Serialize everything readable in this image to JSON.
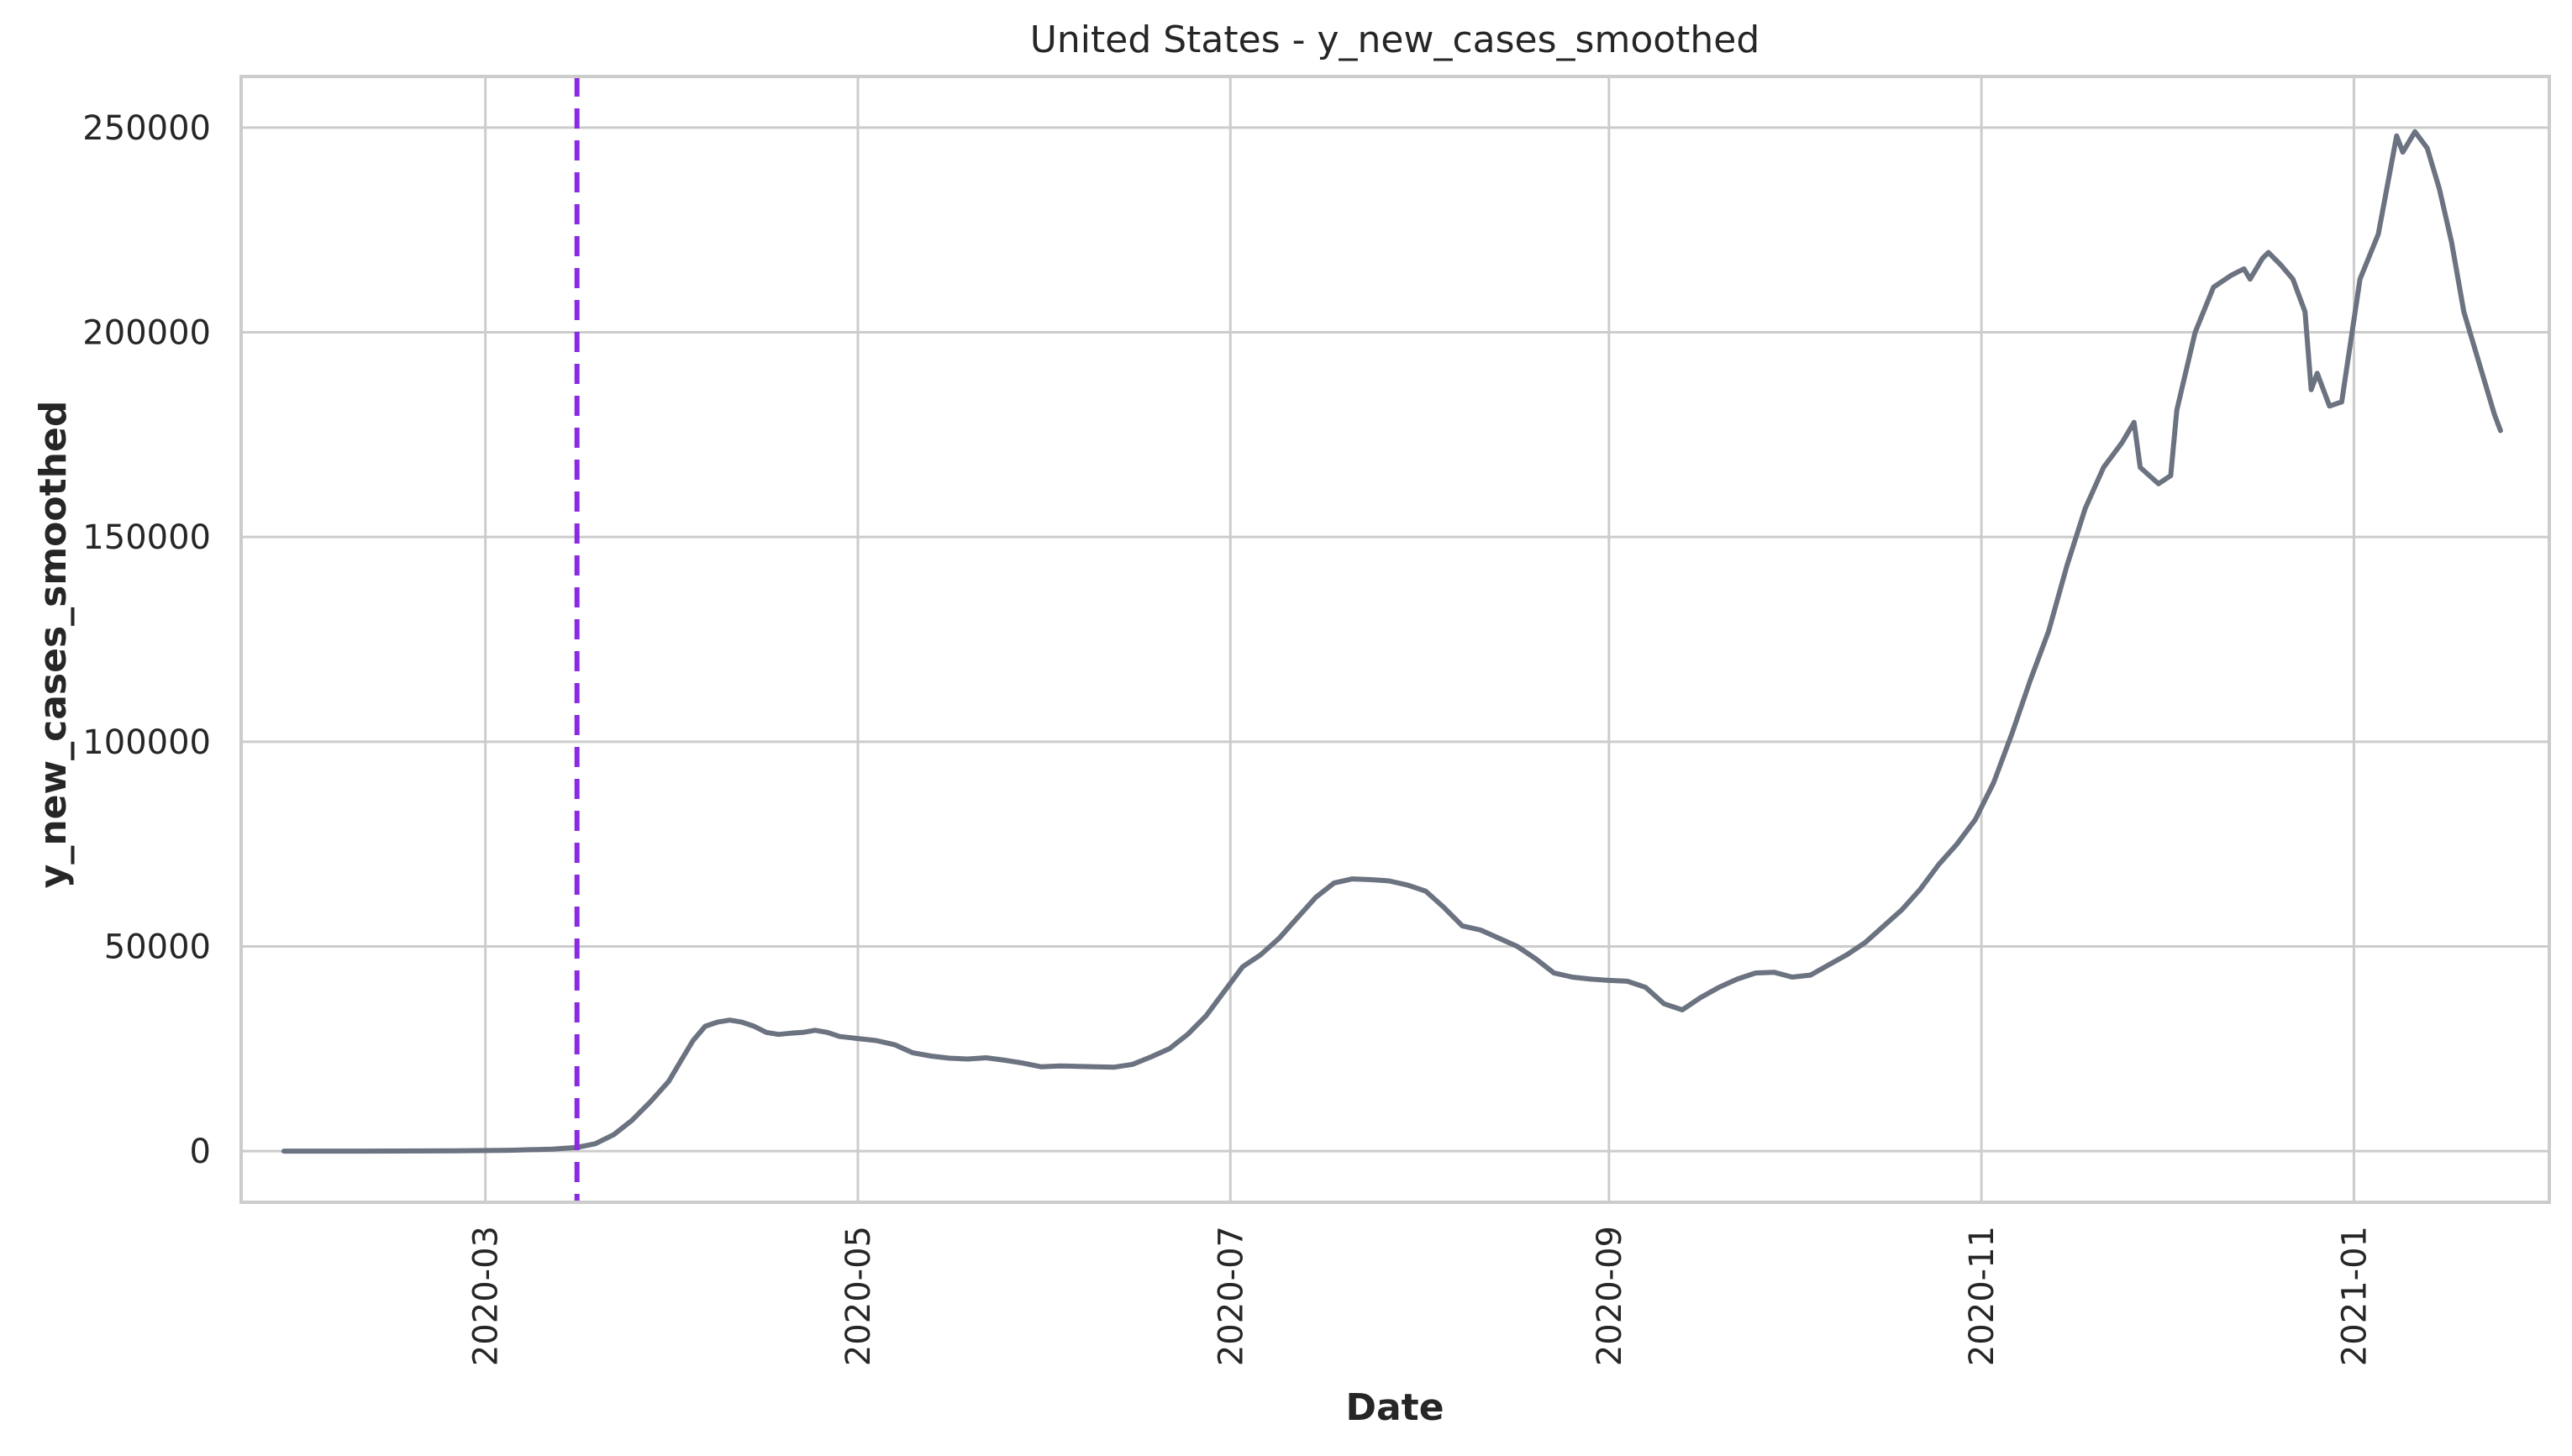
{
  "chart_data": {
    "type": "line",
    "title": "United States - y_new_cases_smoothed",
    "xlabel": "Date",
    "ylabel": "y_new_cases_smoothed",
    "x_range": [
      "2020-01-21",
      "2021-02-02"
    ],
    "ylim": [
      -12500,
      262500
    ],
    "x_ticks": [
      "2020-03",
      "2020-05",
      "2020-07",
      "2020-09",
      "2020-11",
      "2021-01"
    ],
    "y_ticks": [
      0,
      50000,
      100000,
      150000,
      200000,
      250000
    ],
    "grid": true,
    "vertical_marker": {
      "date": "2020-03-16",
      "color": "#8a2be2",
      "style": "dashed"
    },
    "series": [
      {
        "color": "#6b7280",
        "points": [
          [
            "2020-01-28",
            0
          ],
          [
            "2020-02-10",
            0
          ],
          [
            "2020-02-25",
            50
          ],
          [
            "2020-03-05",
            200
          ],
          [
            "2020-03-12",
            500
          ],
          [
            "2020-03-16",
            900
          ],
          [
            "2020-03-19",
            1800
          ],
          [
            "2020-03-22",
            4000
          ],
          [
            "2020-03-25",
            7500
          ],
          [
            "2020-03-28",
            12000
          ],
          [
            "2020-03-31",
            17000
          ],
          [
            "2020-04-02",
            22000
          ],
          [
            "2020-04-04",
            27000
          ],
          [
            "2020-04-06",
            30500
          ],
          [
            "2020-04-08",
            31500
          ],
          [
            "2020-04-10",
            32000
          ],
          [
            "2020-04-12",
            31500
          ],
          [
            "2020-04-14",
            30500
          ],
          [
            "2020-04-16",
            29000
          ],
          [
            "2020-04-18",
            28500
          ],
          [
            "2020-04-20",
            28800
          ],
          [
            "2020-04-22",
            29000
          ],
          [
            "2020-04-24",
            29500
          ],
          [
            "2020-04-26",
            29000
          ],
          [
            "2020-04-28",
            28000
          ],
          [
            "2020-05-01",
            27500
          ],
          [
            "2020-05-04",
            27000
          ],
          [
            "2020-05-07",
            26000
          ],
          [
            "2020-05-10",
            24000
          ],
          [
            "2020-05-13",
            23200
          ],
          [
            "2020-05-16",
            22700
          ],
          [
            "2020-05-19",
            22500
          ],
          [
            "2020-05-22",
            22800
          ],
          [
            "2020-05-25",
            22200
          ],
          [
            "2020-05-28",
            21500
          ],
          [
            "2020-05-31",
            20600
          ],
          [
            "2020-06-03",
            20800
          ],
          [
            "2020-06-06",
            20700
          ],
          [
            "2020-06-09",
            20600
          ],
          [
            "2020-06-12",
            20500
          ],
          [
            "2020-06-15",
            21200
          ],
          [
            "2020-06-18",
            23000
          ],
          [
            "2020-06-21",
            25000
          ],
          [
            "2020-06-24",
            28500
          ],
          [
            "2020-06-27",
            33000
          ],
          [
            "2020-06-30",
            39000
          ],
          [
            "2020-07-03",
            45000
          ],
          [
            "2020-07-06",
            48000
          ],
          [
            "2020-07-09",
            52000
          ],
          [
            "2020-07-12",
            57000
          ],
          [
            "2020-07-15",
            62000
          ],
          [
            "2020-07-18",
            65500
          ],
          [
            "2020-07-21",
            66500
          ],
          [
            "2020-07-24",
            66300
          ],
          [
            "2020-07-27",
            66000
          ],
          [
            "2020-07-30",
            65000
          ],
          [
            "2020-08-02",
            63500
          ],
          [
            "2020-08-05",
            59500
          ],
          [
            "2020-08-08",
            55000
          ],
          [
            "2020-08-11",
            54000
          ],
          [
            "2020-08-14",
            52000
          ],
          [
            "2020-08-17",
            50000
          ],
          [
            "2020-08-20",
            47000
          ],
          [
            "2020-08-23",
            43500
          ],
          [
            "2020-08-26",
            42500
          ],
          [
            "2020-08-29",
            42000
          ],
          [
            "2020-09-01",
            41700
          ],
          [
            "2020-09-04",
            41500
          ],
          [
            "2020-09-07",
            40000
          ],
          [
            "2020-09-10",
            36000
          ],
          [
            "2020-09-13",
            34500
          ],
          [
            "2020-09-16",
            37500
          ],
          [
            "2020-09-19",
            40000
          ],
          [
            "2020-09-22",
            42000
          ],
          [
            "2020-09-25",
            43500
          ],
          [
            "2020-09-28",
            43700
          ],
          [
            "2020-10-01",
            42500
          ],
          [
            "2020-10-04",
            43000
          ],
          [
            "2020-10-07",
            45500
          ],
          [
            "2020-10-10",
            48000
          ],
          [
            "2020-10-13",
            51000
          ],
          [
            "2020-10-16",
            55000
          ],
          [
            "2020-10-19",
            59000
          ],
          [
            "2020-10-22",
            64000
          ],
          [
            "2020-10-25",
            70000
          ],
          [
            "2020-10-28",
            75000
          ],
          [
            "2020-10-31",
            81000
          ],
          [
            "2020-11-03",
            90000
          ],
          [
            "2020-11-06",
            102000
          ],
          [
            "2020-11-09",
            115000
          ],
          [
            "2020-11-12",
            127000
          ],
          [
            "2020-11-15",
            143000
          ],
          [
            "2020-11-18",
            157000
          ],
          [
            "2020-11-21",
            167000
          ],
          [
            "2020-11-24",
            173000
          ],
          [
            "2020-11-26",
            178000
          ],
          [
            "2020-11-27",
            167000
          ],
          [
            "2020-11-30",
            163000
          ],
          [
            "2020-12-02",
            165000
          ],
          [
            "2020-12-03",
            181000
          ],
          [
            "2020-12-06",
            200000
          ],
          [
            "2020-12-09",
            211000
          ],
          [
            "2020-12-12",
            214000
          ],
          [
            "2020-12-14",
            215500
          ],
          [
            "2020-12-15",
            213000
          ],
          [
            "2020-12-17",
            218000
          ],
          [
            "2020-12-18",
            219500
          ],
          [
            "2020-12-20",
            216500
          ],
          [
            "2020-12-22",
            213000
          ],
          [
            "2020-12-24",
            205000
          ],
          [
            "2020-12-25",
            186000
          ],
          [
            "2020-12-26",
            190000
          ],
          [
            "2020-12-28",
            182000
          ],
          [
            "2020-12-30",
            183000
          ],
          [
            "2021-01-02",
            213000
          ],
          [
            "2021-01-05",
            224000
          ],
          [
            "2021-01-08",
            248000
          ],
          [
            "2021-01-09",
            244000
          ],
          [
            "2021-01-11",
            249000
          ],
          [
            "2021-01-13",
            245000
          ],
          [
            "2021-01-15",
            235000
          ],
          [
            "2021-01-17",
            222000
          ],
          [
            "2021-01-19",
            205000
          ],
          [
            "2021-01-22",
            190000
          ],
          [
            "2021-01-24",
            180000
          ],
          [
            "2021-01-25",
            176000
          ]
        ]
      }
    ]
  }
}
